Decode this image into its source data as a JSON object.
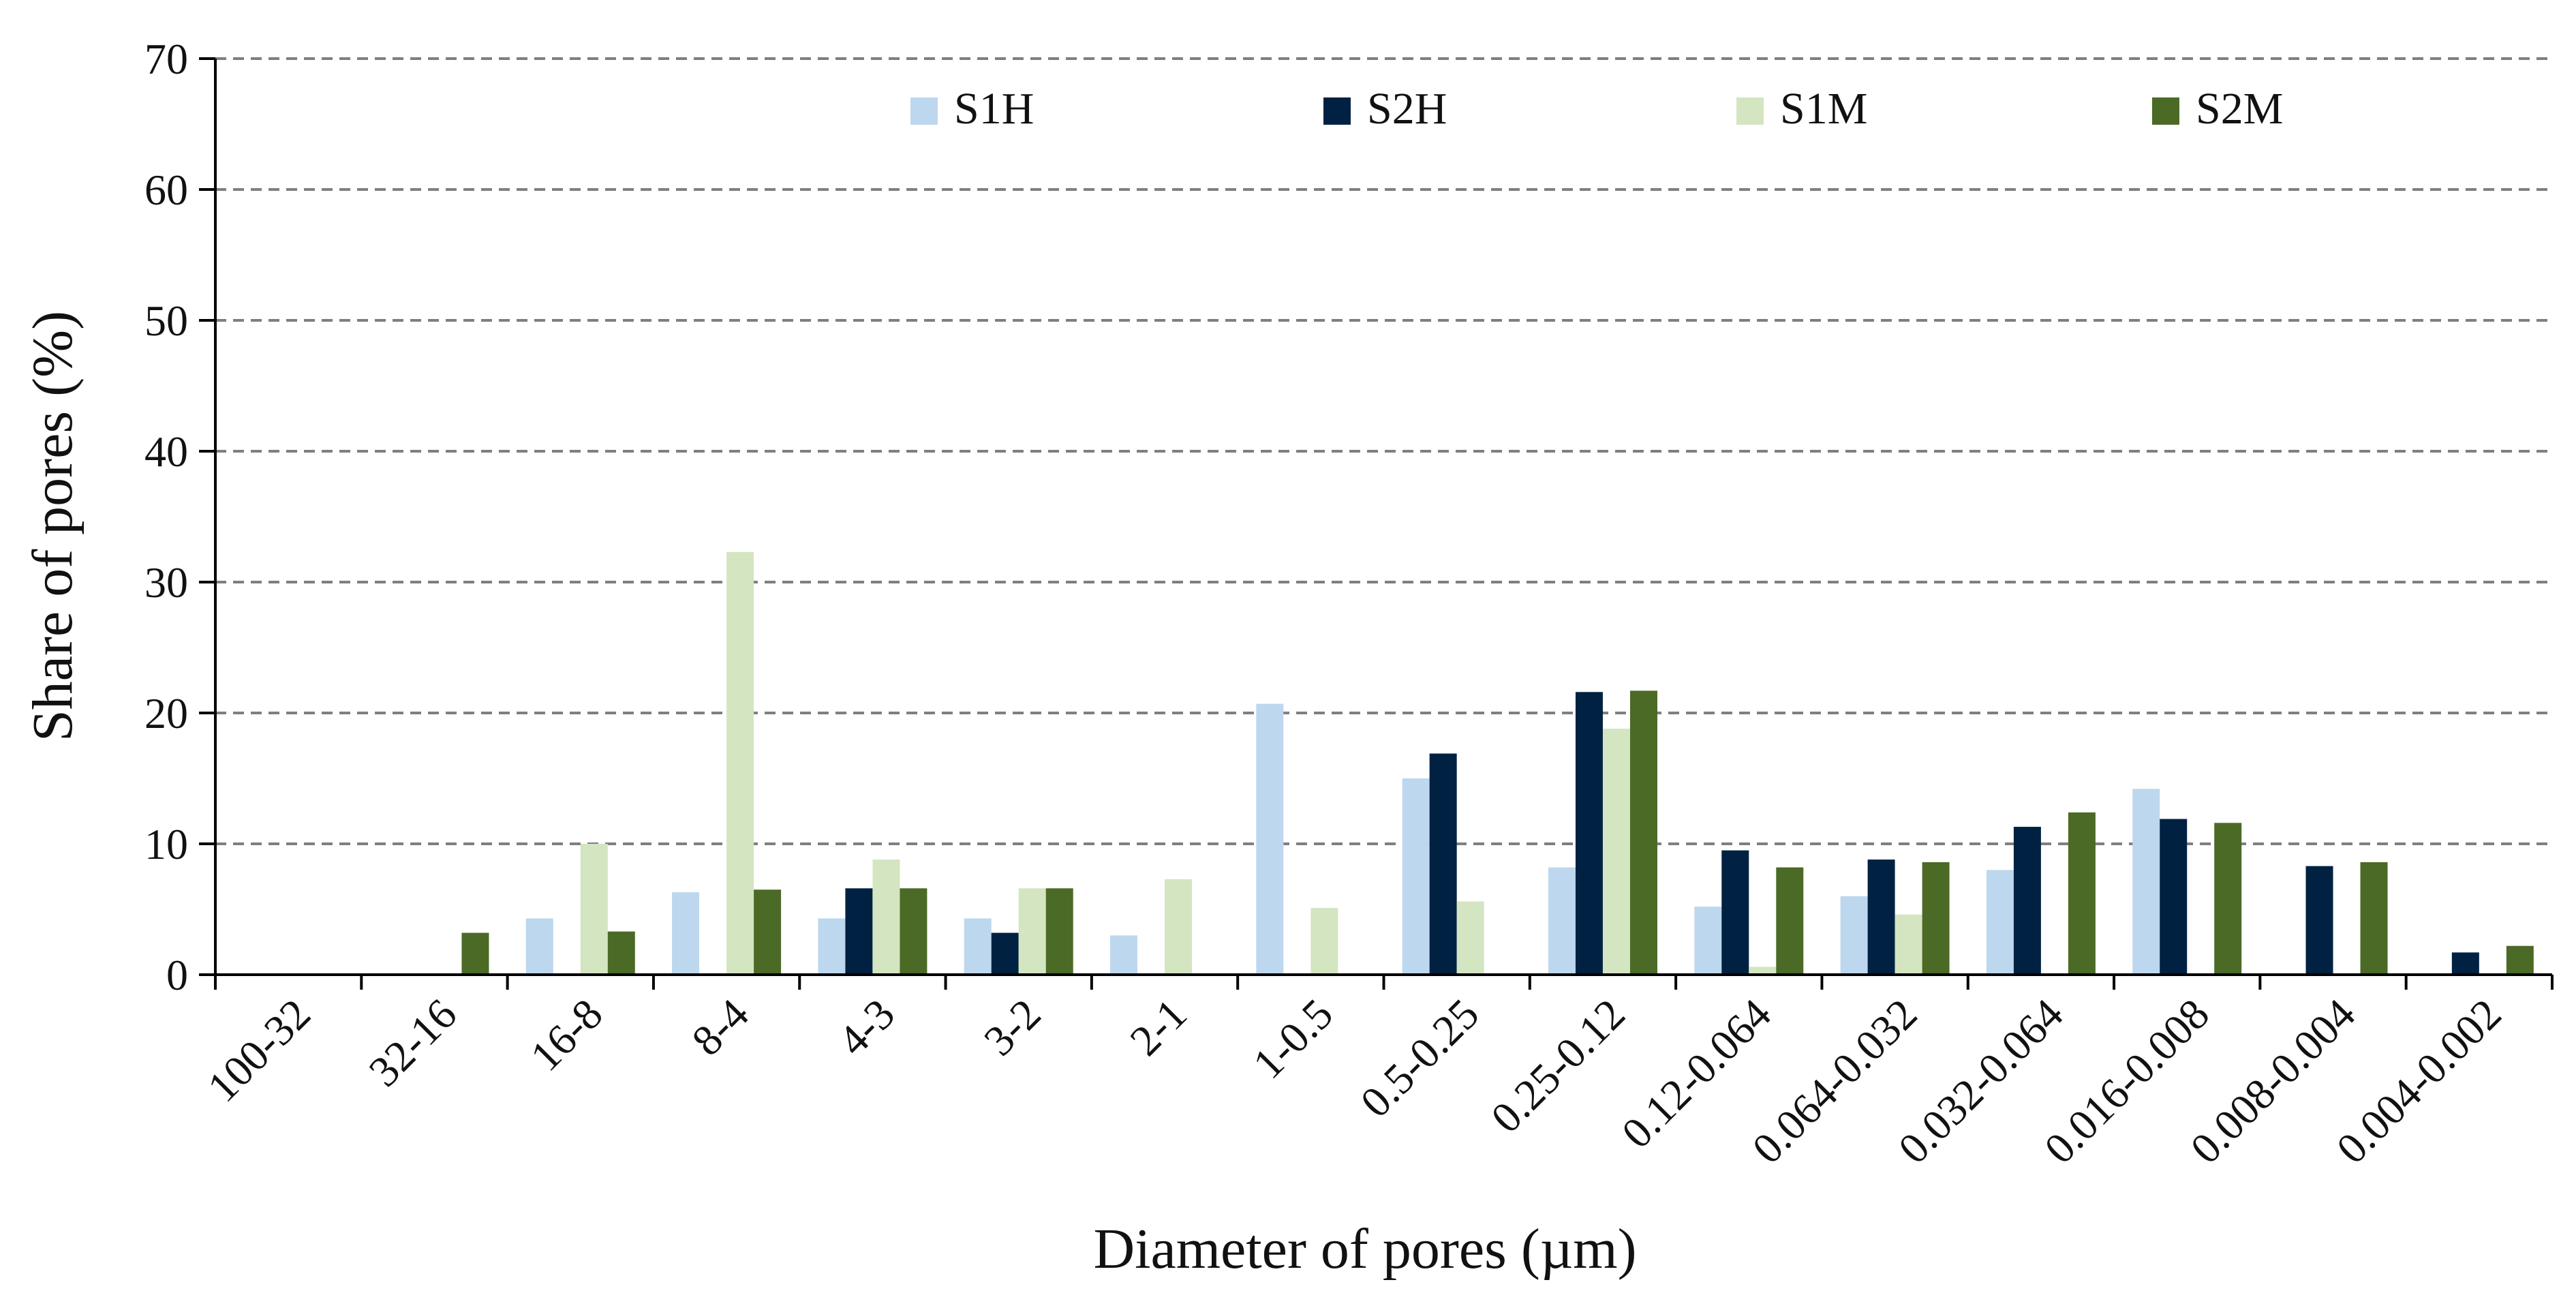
{
  "chart_data": {
    "type": "bar",
    "title": "",
    "xlabel": "Diameter of pores (µm)",
    "ylabel": "Share of pores (%)",
    "ylim": [
      0,
      70
    ],
    "yticks": [
      "0",
      "10",
      "20",
      "30",
      "40",
      "50",
      "60",
      "70"
    ],
    "grid": true,
    "legend_position": "top",
    "categories": [
      "100-32",
      "32-16",
      "16-8",
      "8-4",
      "4-3",
      "3-2",
      "2-1",
      "1-0.5",
      "0.5-0.25",
      "0.25-0.12",
      "0.12-0.064",
      "0.064-0.032",
      "0.032-0.064",
      "0.016-0.008",
      "0.008-0.004",
      "0.004-0.002"
    ],
    "series": [
      {
        "name": "S1H",
        "color": "#bdd7ee",
        "values": [
          0,
          0,
          4.3,
          6.3,
          4.3,
          4.3,
          3.0,
          20.7,
          15.0,
          8.2,
          5.2,
          6.0,
          8.0,
          14.2,
          0,
          0
        ]
      },
      {
        "name": "S2H",
        "color": "#002142",
        "values": [
          0,
          0,
          0,
          0,
          6.6,
          3.2,
          0,
          0,
          16.9,
          21.6,
          9.5,
          8.8,
          11.3,
          11.9,
          8.3,
          1.7
        ]
      },
      {
        "name": "S1M",
        "color": "#d4e5c1",
        "values": [
          0,
          0,
          10.0,
          32.3,
          8.8,
          6.6,
          7.3,
          5.1,
          5.6,
          18.8,
          0.6,
          4.6,
          0,
          0,
          0,
          0
        ]
      },
      {
        "name": "S2M",
        "color": "#4b6a26",
        "values": [
          0,
          3.2,
          3.3,
          6.5,
          6.6,
          6.6,
          0,
          0,
          0,
          21.7,
          8.2,
          8.6,
          12.4,
          11.6,
          8.6,
          2.2
        ]
      }
    ]
  }
}
